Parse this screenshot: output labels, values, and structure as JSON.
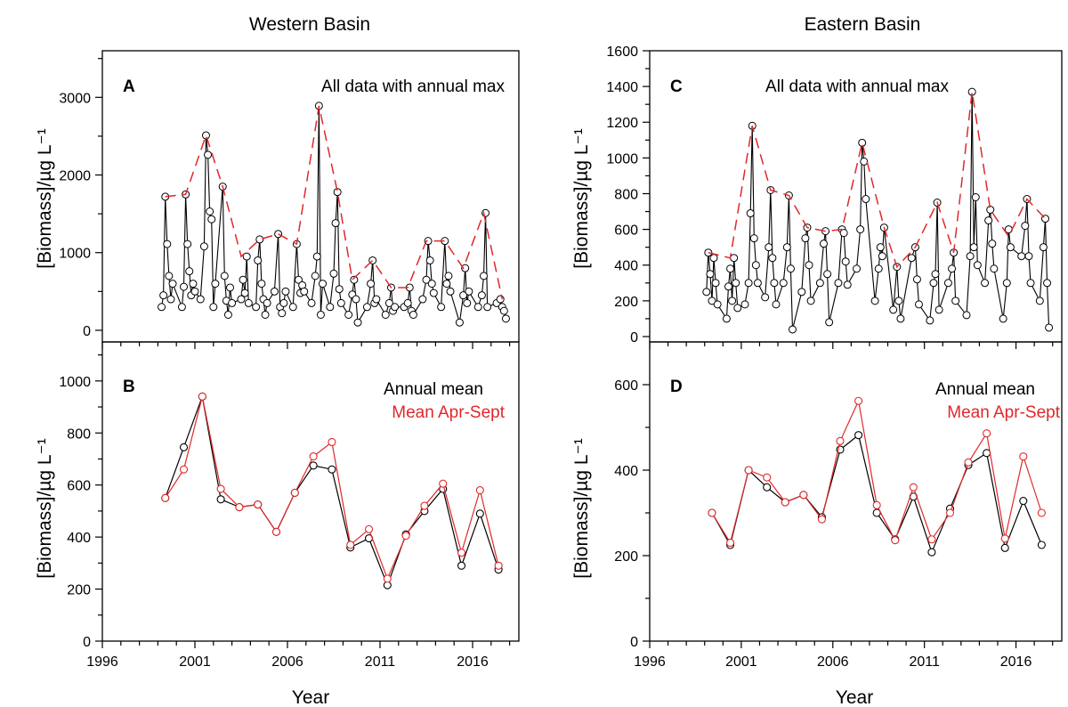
{
  "chart_data": [
    {
      "id": "A",
      "panel_letter": "A",
      "title": "Western Basin",
      "type": "line",
      "annotations": [
        "All data with annual max"
      ],
      "ylabel": "[Biomass]/µg L⁻¹",
      "xlabel": "",
      "ylim": [
        -150,
        3600
      ],
      "yticks": [
        0,
        1000,
        2000,
        3000
      ],
      "xlim": [
        1996,
        2018.5
      ],
      "xticks": [],
      "series": [
        {
          "type": "scatter-line",
          "color": "#000000",
          "x": [
            1999.2,
            1999.3,
            1999.4,
            1999.5,
            1999.6,
            1999.7,
            1999.8,
            2000.3,
            2000.4,
            2000.5,
            2000.6,
            2000.7,
            2000.8,
            2000.9,
            2001.0,
            2001.3,
            2001.5,
            2001.6,
            2001.7,
            2001.8,
            2001.9,
            2002.0,
            2002.1,
            2002.5,
            2002.6,
            2002.7,
            2002.8,
            2002.9,
            2003.0,
            2003.5,
            2003.6,
            2003.7,
            2003.8,
            2003.9,
            2004.3,
            2004.4,
            2004.5,
            2004.6,
            2004.7,
            2004.8,
            2004.9,
            2005.3,
            2005.5,
            2005.6,
            2005.7,
            2005.8,
            2005.9,
            2006.3,
            2006.5,
            2006.6,
            2006.7,
            2006.8,
            2006.9,
            2007.3,
            2007.5,
            2007.6,
            2007.7,
            2007.8,
            2007.9,
            2008.3,
            2008.5,
            2008.6,
            2008.7,
            2008.8,
            2008.9,
            2009.3,
            2009.5,
            2009.6,
            2009.7,
            2009.8,
            2010.3,
            2010.5,
            2010.6,
            2010.7,
            2010.8,
            2011.3,
            2011.5,
            2011.6,
            2011.7,
            2011.8,
            2012.3,
            2012.5,
            2012.6,
            2012.7,
            2012.8,
            2013.3,
            2013.5,
            2013.6,
            2013.7,
            2013.8,
            2013.9,
            2014.3,
            2014.5,
            2014.6,
            2014.7,
            2014.8,
            2015.3,
            2015.5,
            2015.6,
            2015.7,
            2015.8,
            2016.3,
            2016.5,
            2016.6,
            2016.7,
            2016.8,
            2017.3,
            2017.5,
            2017.6,
            2017.7,
            2017.8
          ],
          "y": [
            300,
            450,
            1720,
            1110,
            700,
            400,
            600,
            300,
            560,
            1750,
            1110,
            760,
            450,
            600,
            500,
            400,
            1080,
            2510,
            2260,
            1530,
            1430,
            300,
            600,
            1850,
            700,
            380,
            200,
            550,
            350,
            400,
            650,
            480,
            950,
            350,
            300,
            900,
            1170,
            600,
            400,
            200,
            350,
            500,
            1240,
            300,
            220,
            350,
            500,
            300,
            1110,
            650,
            480,
            580,
            500,
            350,
            700,
            950,
            2890,
            200,
            600,
            300,
            730,
            1380,
            1780,
            530,
            350,
            200,
            460,
            650,
            400,
            100,
            300,
            600,
            900,
            350,
            400,
            200,
            350,
            550,
            250,
            300,
            300,
            350,
            550,
            250,
            200,
            400,
            650,
            1150,
            900,
            600,
            480,
            300,
            1150,
            600,
            700,
            500,
            100,
            450,
            800,
            350,
            500,
            300,
            450,
            700,
            1510,
            300,
            350,
            400,
            300,
            250,
            150
          ]
        },
        {
          "type": "dashed-line",
          "color": "#e0282a",
          "x": [
            1999.4,
            2000.5,
            2001.6,
            2002.5,
            2003.5,
            2004.5,
            2005.5,
            2006.5,
            2007.7,
            2008.7,
            2009.5,
            2010.6,
            2011.6,
            2012.5,
            2013.5,
            2014.5,
            2015.5,
            2016.6,
            2017.6
          ],
          "y": [
            1720,
            1750,
            2510,
            1850,
            950,
            1170,
            1240,
            1110,
            2890,
            1780,
            650,
            900,
            550,
            550,
            1150,
            1150,
            800,
            1510,
            400
          ]
        }
      ]
    },
    {
      "id": "B",
      "panel_letter": "B",
      "title": "",
      "type": "line",
      "annotations": [
        "Annual mean",
        "Mean Apr-Sept"
      ],
      "ylabel": "[Biomass]/µg L⁻¹",
      "xlabel": "Year",
      "ylim": [
        0,
        1150
      ],
      "yticks": [
        0,
        200,
        400,
        600,
        800,
        1000
      ],
      "xlim": [
        1996,
        2018.5
      ],
      "xticks": [
        1996,
        2001,
        2006,
        2011,
        2016
      ],
      "series": [
        {
          "name": "Annual mean",
          "color": "#000000",
          "x": [
            1999.4,
            2000.4,
            2001.4,
            2002.4,
            2003.4,
            2004.4,
            2005.4,
            2006.4,
            2007.4,
            2008.4,
            2009.4,
            2010.4,
            2011.4,
            2012.4,
            2013.4,
            2014.4,
            2015.4,
            2016.4,
            2017.4
          ],
          "y": [
            550,
            745,
            940,
            545,
            515,
            525,
            420,
            570,
            675,
            660,
            360,
            395,
            215,
            410,
            500,
            585,
            290,
            490,
            275
          ]
        },
        {
          "name": "Mean Apr-Sept",
          "color": "#e0282a",
          "x": [
            1999.4,
            2000.4,
            2001.4,
            2002.4,
            2003.4,
            2004.4,
            2005.4,
            2006.4,
            2007.4,
            2008.4,
            2009.4,
            2010.4,
            2011.4,
            2012.4,
            2013.4,
            2014.4,
            2015.4,
            2016.4,
            2017.4
          ],
          "y": [
            550,
            660,
            940,
            585,
            515,
            525,
            420,
            570,
            710,
            765,
            370,
            430,
            240,
            405,
            520,
            605,
            340,
            580,
            290
          ]
        }
      ]
    },
    {
      "id": "C",
      "panel_letter": "C",
      "title": "Eastern Basin",
      "type": "line",
      "annotations": [
        "All data with annual max"
      ],
      "ylabel": "[Biomass]/µg L⁻¹",
      "xlabel": "",
      "ylim": [
        -30,
        1600
      ],
      "yticks": [
        0,
        200,
        400,
        600,
        800,
        1000,
        1200,
        1400,
        1600
      ],
      "xlim": [
        1996,
        2018.5
      ],
      "xticks": [],
      "series": [
        {
          "type": "scatter-line",
          "color": "#000000",
          "x": [
            1999.1,
            1999.2,
            1999.3,
            1999.4,
            1999.5,
            1999.6,
            1999.7,
            2000.2,
            2000.3,
            2000.4,
            2000.5,
            2000.6,
            2000.7,
            2000.8,
            2001.2,
            2001.4,
            2001.5,
            2001.6,
            2001.7,
            2001.8,
            2001.9,
            2002.3,
            2002.5,
            2002.6,
            2002.7,
            2002.8,
            2002.9,
            2003.3,
            2003.5,
            2003.6,
            2003.7,
            2003.8,
            2004.3,
            2004.5,
            2004.6,
            2004.7,
            2004.8,
            2005.3,
            2005.5,
            2005.6,
            2005.7,
            2005.8,
            2006.3,
            2006.5,
            2006.6,
            2006.7,
            2006.8,
            2007.3,
            2007.5,
            2007.6,
            2007.7,
            2007.8,
            2008.3,
            2008.5,
            2008.6,
            2008.7,
            2008.8,
            2009.3,
            2009.5,
            2009.6,
            2009.7,
            2010.3,
            2010.5,
            2010.6,
            2010.7,
            2011.3,
            2011.5,
            2011.6,
            2011.7,
            2011.8,
            2012.3,
            2012.5,
            2012.6,
            2012.7,
            2013.3,
            2013.5,
            2013.6,
            2013.7,
            2013.8,
            2013.9,
            2014.3,
            2014.5,
            2014.6,
            2014.7,
            2014.8,
            2015.3,
            2015.5,
            2015.6,
            2015.7,
            2016.3,
            2016.5,
            2016.6,
            2016.7,
            2016.8,
            2017.3,
            2017.5,
            2017.6,
            2017.7,
            2017.8
          ],
          "y": [
            250,
            470,
            350,
            200,
            440,
            300,
            180,
            100,
            280,
            380,
            200,
            440,
            300,
            160,
            180,
            300,
            690,
            1180,
            550,
            400,
            300,
            220,
            500,
            820,
            440,
            300,
            180,
            300,
            500,
            790,
            380,
            40,
            250,
            550,
            610,
            400,
            200,
            300,
            520,
            590,
            350,
            80,
            300,
            600,
            580,
            420,
            290,
            380,
            600,
            1085,
            980,
            770,
            200,
            380,
            500,
            450,
            610,
            150,
            390,
            200,
            100,
            440,
            500,
            320,
            180,
            90,
            300,
            350,
            750,
            150,
            300,
            380,
            470,
            200,
            120,
            450,
            1370,
            500,
            780,
            400,
            300,
            650,
            710,
            520,
            380,
            100,
            300,
            600,
            500,
            450,
            620,
            770,
            450,
            300,
            200,
            500,
            660,
            300,
            50
          ]
        },
        {
          "type": "dashed-line",
          "color": "#e0282a",
          "x": [
            1999.2,
            2000.4,
            2001.6,
            2002.6,
            2003.6,
            2004.6,
            2005.6,
            2006.5,
            2007.6,
            2008.8,
            2009.5,
            2010.5,
            2011.7,
            2012.6,
            2013.6,
            2014.6,
            2015.6,
            2016.6,
            2017.6
          ],
          "y": [
            470,
            440,
            1180,
            820,
            790,
            610,
            590,
            600,
            1085,
            610,
            390,
            500,
            750,
            470,
            1370,
            710,
            560,
            770,
            660
          ]
        }
      ]
    },
    {
      "id": "D",
      "panel_letter": "D",
      "title": "",
      "type": "line",
      "annotations": [
        "Annual mean",
        "Mean Apr-Sept"
      ],
      "ylabel": "[Biomass]/µg L⁻¹",
      "xlabel": "Year",
      "ylim": [
        0,
        700
      ],
      "yticks": [
        0,
        200,
        400,
        600
      ],
      "xlim": [
        1996,
        2018.5
      ],
      "xticks": [
        1996,
        2001,
        2006,
        2011,
        2016
      ],
      "series": [
        {
          "name": "Annual mean",
          "color": "#000000",
          "x": [
            1999.4,
            2000.4,
            2001.4,
            2002.4,
            2003.4,
            2004.4,
            2005.4,
            2006.4,
            2007.4,
            2008.4,
            2009.4,
            2010.4,
            2011.4,
            2012.4,
            2013.4,
            2014.4,
            2015.4,
            2016.4,
            2017.4
          ],
          "y": [
            300,
            225,
            400,
            360,
            325,
            342,
            290,
            448,
            482,
            300,
            238,
            338,
            208,
            310,
            412,
            440,
            218,
            328,
            225
          ]
        },
        {
          "name": "Mean Apr-Sept",
          "color": "#e0282a",
          "x": [
            1999.4,
            2000.4,
            2001.4,
            2002.4,
            2003.4,
            2004.4,
            2005.4,
            2006.4,
            2007.4,
            2008.4,
            2009.4,
            2010.4,
            2011.4,
            2012.4,
            2013.4,
            2014.4,
            2015.4,
            2016.4,
            2017.4
          ],
          "y": [
            300,
            230,
            400,
            383,
            325,
            342,
            285,
            468,
            562,
            318,
            236,
            360,
            238,
            300,
            418,
            486,
            240,
            432,
            300
          ]
        }
      ]
    }
  ]
}
